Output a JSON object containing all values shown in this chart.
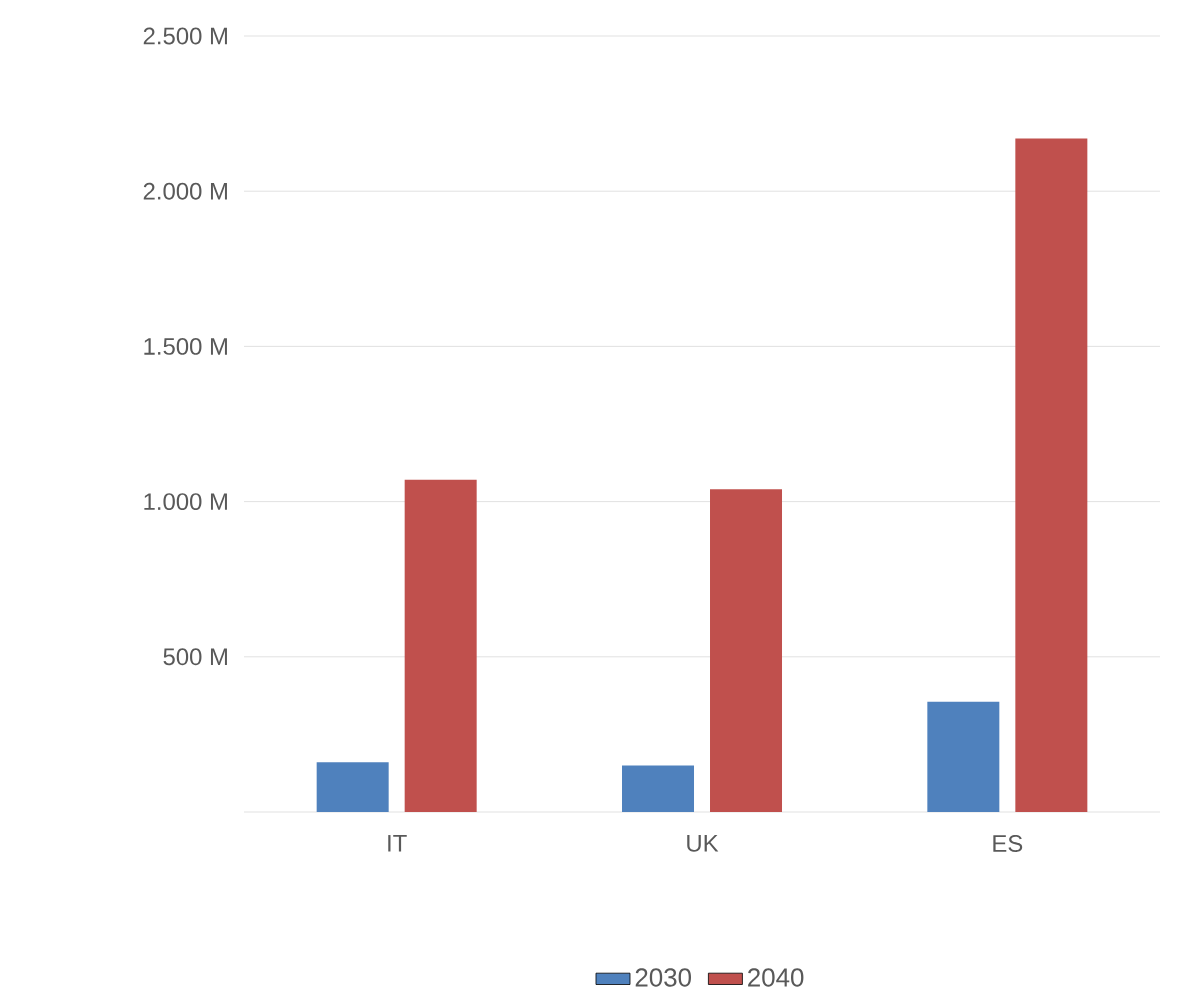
{
  "chart_data": {
    "type": "bar",
    "categories": [
      "IT",
      "UK",
      "ES"
    ],
    "series": [
      {
        "name": "2030",
        "color": "#4f81bd",
        "values": [
          160,
          150,
          355
        ]
      },
      {
        "name": "2040",
        "color": "#c0504d",
        "values": [
          1070,
          1040,
          2170
        ]
      }
    ],
    "ylim": [
      0,
      2500
    ],
    "yticks": [
      {
        "value": 500,
        "label": "500 M"
      },
      {
        "value": 1000,
        "label": "1.000 M"
      },
      {
        "value": 1500,
        "label": "1.500 M"
      },
      {
        "value": 2000,
        "label": "2.000 M"
      },
      {
        "value": 2500,
        "label": "2.500 M"
      }
    ],
    "grid": "y",
    "legend": "bottom"
  }
}
